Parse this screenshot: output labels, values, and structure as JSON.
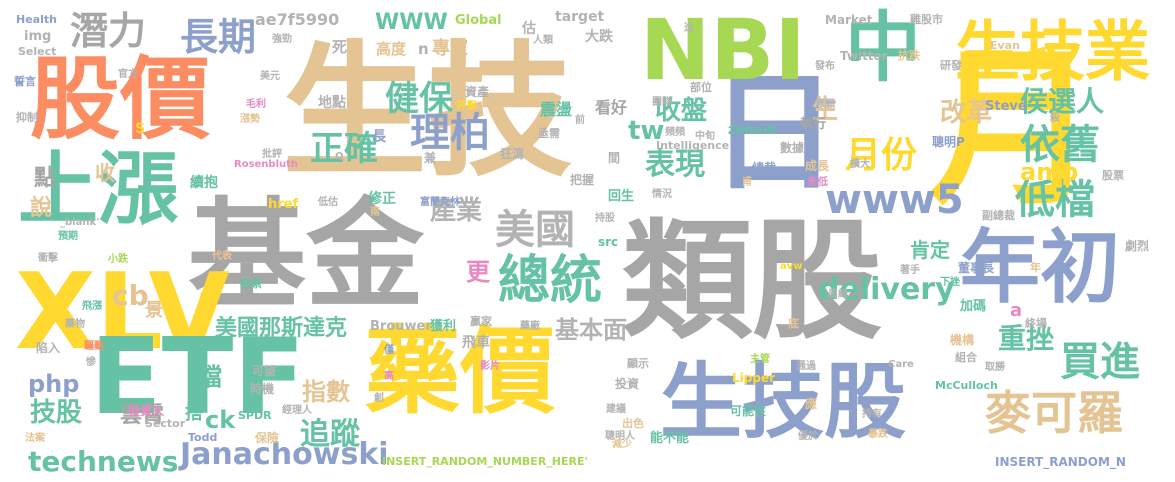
{
  "palette": {
    "gray": "#a6a6a6",
    "teal": "#66c2a5",
    "salmon": "#fc8d62",
    "lavender": "#8da0cb",
    "pink": "#e78ac3",
    "green": "#a6d854",
    "yellow": "#ffd92f",
    "tan": "#e5c494",
    "lightgray": "#b3b3b3"
  },
  "words": [
    {
      "text": "生技",
      "color": "#e5c494"
    },
    {
      "text": "類股",
      "color": "#a6a6a6"
    },
    {
      "text": "基金",
      "color": "#a6a6a6"
    },
    {
      "text": "股價",
      "color": "#fc8d62"
    },
    {
      "text": "月",
      "color": "#ffd92f"
    },
    {
      "text": "日",
      "color": "#8da0cb"
    },
    {
      "text": "NBI",
      "color": "#a6d854"
    },
    {
      "text": "中",
      "color": "#66c2a5"
    },
    {
      "text": "生技業",
      "color": "#ffd92f"
    },
    {
      "text": "上漲",
      "color": "#66c2a5"
    },
    {
      "text": "XLV",
      "color": "#ffd92f"
    },
    {
      "text": "ETF",
      "color": "#66c2a5"
    },
    {
      "text": "藥價",
      "color": "#ffd92f"
    },
    {
      "text": "生技股",
      "color": "#8da0cb"
    },
    {
      "text": "年初",
      "color": "#8da0cb"
    },
    {
      "text": "潛力",
      "color": "#a6a6a6"
    },
    {
      "text": "長期",
      "color": "#8da0cb"
    },
    {
      "text": "總統",
      "color": "#66c2a5"
    },
    {
      "text": "美國",
      "color": "#b3b3b3"
    },
    {
      "text": "依舊",
      "color": "#66c2a5"
    },
    {
      "text": "低檔",
      "color": "#66c2a5"
    },
    {
      "text": "麥可羅",
      "color": "#e5c494"
    },
    {
      "text": "買進",
      "color": "#66c2a5"
    },
    {
      "text": "www5",
      "color": "#8da0cb"
    },
    {
      "text": "月份",
      "color": "#ffd92f"
    },
    {
      "text": "理柏",
      "color": "#8da0cb"
    },
    {
      "text": "正確",
      "color": "#66c2a5"
    },
    {
      "text": "健保",
      "color": "#66c2a5"
    },
    {
      "text": "technews",
      "color": "#66c2a5"
    },
    {
      "text": "Janachowski",
      "color": "#8da0cb"
    },
    {
      "text": "delivery",
      "color": "#66c2a5"
    },
    {
      "text": "ae7f5990",
      "color": "#b3b3b3"
    },
    {
      "text": "WWW",
      "color": "#66c2a5"
    },
    {
      "text": "美國那斯達克",
      "color": "#66c2a5"
    },
    {
      "text": "追蹤",
      "color": "#66c2a5"
    },
    {
      "text": "指數",
      "color": "#e5c494"
    },
    {
      "text": "重挫",
      "color": "#66c2a5"
    },
    {
      "text": "表現",
      "color": "#66c2a5"
    },
    {
      "text": "收盤",
      "color": "#66c2a5"
    },
    {
      "text": "產業",
      "color": "#b3b3b3"
    },
    {
      "text": "基本面",
      "color": "#b3b3b3"
    },
    {
      "text": "侯選人",
      "color": "#66c2a5"
    },
    {
      "text": "改革",
      "color": "#e5c494"
    },
    {
      "text": "amp",
      "color": "#ffd92f"
    },
    {
      "text": "肯定",
      "color": "#66c2a5"
    },
    {
      "text": "技股",
      "color": "#66c2a5"
    },
    {
      "text": "php",
      "color": "#8da0cb"
    },
    {
      "text": "雲霄",
      "color": "#a6a6a6"
    },
    {
      "text": "cb",
      "color": "#e5c494"
    },
    {
      "text": "tw",
      "color": "#66c2a5"
    },
    {
      "text": "生",
      "color": "#e5c494"
    },
    {
      "text": "更",
      "color": "#e78ac3"
    },
    {
      "text": "點",
      "color": "#a6a6a6"
    },
    {
      "text": "說",
      "color": "#e5c494"
    },
    {
      "text": "收",
      "color": "#e5c494"
    },
    {
      "text": "ck",
      "color": "#66c2a5"
    },
    {
      "text": "檔",
      "color": "#66c2a5"
    },
    {
      "text": "a",
      "color": "#e78ac3"
    },
    {
      "text": "景",
      "color": "#e5c494"
    },
    {
      "text": "搭",
      "color": "#66c2a5"
    },
    {
      "text": "專家",
      "color": "#e5c494"
    },
    {
      "text": "高度",
      "color": "#e5c494"
    },
    {
      "text": "n",
      "color": "#b3b3b3"
    },
    {
      "text": "死",
      "color": "#b3b3b3"
    },
    {
      "text": "估",
      "color": "#b3b3b3"
    },
    {
      "text": "看好",
      "color": "#a6a6a6"
    },
    {
      "text": "震盪",
      "color": "#66c2a5"
    },
    {
      "text": "大跌",
      "color": "#b3b3b3"
    },
    {
      "text": "target",
      "color": "#b3b3b3"
    },
    {
      "text": "Global",
      "color": "#a6d854"
    },
    {
      "text": "Market",
      "color": "#b3b3b3"
    },
    {
      "text": "Health",
      "color": "#8da0cb"
    },
    {
      "text": "img",
      "color": "#b3b3b3"
    },
    {
      "text": "Select",
      "color": "#b3b3b3"
    },
    {
      "text": "誓言",
      "color": "#8da0cb"
    },
    {
      "text": "抑制",
      "color": "#b3b3b3"
    },
    {
      "text": "官方",
      "color": "#b3b3b3"
    },
    {
      "text": "強勁",
      "color": "#b3b3b3"
    },
    {
      "text": "美元",
      "color": "#b3b3b3"
    },
    {
      "text": "毛利",
      "color": "#e78ac3"
    },
    {
      "text": "漲勢",
      "color": "#e5c494"
    },
    {
      "text": "地點",
      "color": "#b3b3b3"
    },
    {
      "text": "資產",
      "color": "#b3b3b3"
    },
    {
      "text": "抨擊",
      "color": "#ffd92f"
    },
    {
      "text": "人類",
      "color": "#b3b3b3"
    },
    {
      "text": "穩健",
      "color": "#e5c494"
    },
    {
      "text": "部位",
      "color": "#b3b3b3"
    },
    {
      "text": "團隊",
      "color": "#b3b3b3"
    },
    {
      "text": "發布",
      "color": "#b3b3b3"
    },
    {
      "text": "抗跌",
      "color": "#e5c494"
    },
    {
      "text": "研發",
      "color": "#b3b3b3"
    },
    {
      "text": "雞股市",
      "color": "#b3b3b3"
    },
    {
      "text": "Twitter",
      "color": "#b3b3b3"
    },
    {
      "text": "Evan",
      "color": "#e5c494"
    },
    {
      "text": "Steve",
      "color": "#8da0cb"
    },
    {
      "text": "zoneid",
      "color": "#66c2a5"
    },
    {
      "text": "執行",
      "color": "#a6a6a6"
    },
    {
      "text": "數據",
      "color": "#b3b3b3"
    },
    {
      "text": "總裁",
      "color": "#8da0cb"
    },
    {
      "text": "成長",
      "color": "#e5c494"
    },
    {
      "text": "聰明P",
      "color": "#8da0cb"
    },
    {
      "text": "意願",
      "color": "#b3b3b3"
    },
    {
      "text": "殺",
      "color": "#b3b3b3"
    },
    {
      "text": "股票",
      "color": "#b3b3b3"
    },
    {
      "text": "副總裁",
      "color": "#b3b3b3"
    },
    {
      "text": "劇烈",
      "color": "#b3b3b3"
    },
    {
      "text": "董事長",
      "color": "#8da0cb"
    },
    {
      "text": "年",
      "color": "#e5c494"
    },
    {
      "text": "著手",
      "color": "#b3b3b3"
    },
    {
      "text": "下挫",
      "color": "#66c2a5"
    },
    {
      "text": "加碼",
      "color": "#66c2a5"
    },
    {
      "text": "終場",
      "color": "#b3b3b3"
    },
    {
      "text": "機構",
      "color": "#e5c494"
    },
    {
      "text": "組合",
      "color": "#b3b3b3"
    },
    {
      "text": "取勝",
      "color": "#b3b3b3"
    },
    {
      "text": "Care",
      "color": "#b3b3b3"
    },
    {
      "text": "McCulloch",
      "color": "#66c2a5"
    },
    {
      "text": "持有",
      "color": "#b3b3b3"
    },
    {
      "text": "暴跌",
      "color": "#e5c494"
    },
    {
      "text": "INSERT_RANDOM_N",
      "color": "#8da0cb"
    },
    {
      "text": "INSERT_RANDOM_NUMBER_HERE'",
      "color": "#a6d854"
    },
    {
      "text": "能不能",
      "color": "#66c2a5"
    },
    {
      "text": "聰明人",
      "color": "#b3b3b3"
    },
    {
      "text": "建議",
      "color": "#b3b3b3"
    },
    {
      "text": "出色",
      "color": "#e5c494"
    },
    {
      "text": "投資",
      "color": "#b3b3b3"
    },
    {
      "text": "顯示",
      "color": "#b3b3b3"
    },
    {
      "text": "可能性",
      "color": "#66c2a5"
    },
    {
      "text": "Lipper",
      "color": "#ffd92f"
    },
    {
      "text": "主管",
      "color": "#a6d854"
    },
    {
      "text": "通過",
      "color": "#b3b3b3"
    },
    {
      "text": "優於",
      "color": "#b3b3b3"
    },
    {
      "text": "經理人",
      "color": "#b3b3b3"
    },
    {
      "text": "創",
      "color": "#b3b3b3"
    },
    {
      "text": "SPDR",
      "color": "#66c2a5"
    },
    {
      "text": "投資人",
      "color": "#e78ac3"
    },
    {
      "text": "時機",
      "color": "#b3b3b3"
    },
    {
      "text": "可望",
      "color": "#b3b3b3"
    },
    {
      "text": "Sector",
      "color": "#b3b3b3"
    },
    {
      "text": "Todd",
      "color": "#8da0cb"
    },
    {
      "text": "保險",
      "color": "#e5c494"
    },
    {
      "text": "陷入",
      "color": "#b3b3b3"
    },
    {
      "text": "藥物",
      "color": "#b3b3b3"
    },
    {
      "text": "飛漲",
      "color": "#66c2a5"
    },
    {
      "text": "驅動",
      "color": "#fc8d62"
    },
    {
      "text": "慘",
      "color": "#b3b3b3"
    },
    {
      "text": "法案",
      "color": "#e5c494"
    },
    {
      "text": "Brouwer",
      "color": "#b3b3b3"
    },
    {
      "text": "獲利",
      "color": "#66c2a5"
    },
    {
      "text": "贏家",
      "color": "#b3b3b3"
    },
    {
      "text": "飛車",
      "color": "#b3b3b3"
    },
    {
      "text": "藥廠",
      "color": "#b3b3b3"
    },
    {
      "text": "底",
      "color": "#e5c494"
    },
    {
      "text": "avw",
      "color": "#ffd92f"
    },
    {
      "text": "周線",
      "color": "#b3b3b3"
    },
    {
      "text": "擴大",
      "color": "#b3b3b3"
    },
    {
      "text": "拖累",
      "color": "#66c2a5"
    },
    {
      "text": "代表",
      "color": "#e5c494"
    },
    {
      "text": "_blank'",
      "color": "#b3b3b3"
    },
    {
      "text": "預期",
      "color": "#66c2a5"
    },
    {
      "text": "小跌",
      "color": "#a6d854"
    },
    {
      "text": "衝擊",
      "color": "#b3b3b3"
    },
    {
      "text": "修正",
      "color": "#66c2a5"
    },
    {
      "text": "富蘭克林",
      "color": "#8da0cb"
    },
    {
      "text": "回生",
      "color": "#66c2a5"
    },
    {
      "text": "情況",
      "color": "#b3b3b3"
    },
    {
      "text": "把握",
      "color": "#b3b3b3"
    },
    {
      "text": "持股",
      "color": "#b3b3b3"
    },
    {
      "text": "src",
      "color": "#66c2a5"
    },
    {
      "text": "href",
      "color": "#ffd92f"
    },
    {
      "text": "低估",
      "color": "#b3b3b3"
    },
    {
      "text": "續抱",
      "color": "#66c2a5"
    },
    {
      "text": "Rosenbluth",
      "color": "#e78ac3"
    },
    {
      "text": "批評",
      "color": "#b3b3b3"
    },
    {
      "text": "Q",
      "color": "#b3b3b3"
    },
    {
      "text": "長",
      "color": "#8da0cb"
    },
    {
      "text": "兼",
      "color": "#b3b3b3"
    },
    {
      "text": "狂瀉",
      "color": "#b3b3b3"
    },
    {
      "text": "間",
      "color": "#b3b3b3"
    },
    {
      "text": "亟需",
      "color": "#b3b3b3"
    },
    {
      "text": "前",
      "color": "#b3b3b3"
    },
    {
      "text": "頻頻",
      "color": "#b3b3b3"
    },
    {
      "text": "新低",
      "color": "#e78ac3"
    },
    {
      "text": "Intelligence",
      "color": "#b3b3b3"
    },
    {
      "text": "S",
      "color": "#ffd92f"
    },
    {
      "text": "迄",
      "color": "#b3b3b3"
    },
    {
      "text": "中旬",
      "color": "#b3b3b3"
    },
    {
      "text": "甫",
      "color": "#e5c494"
    },
    {
      "text": "影片",
      "color": "#e78ac3"
    },
    {
      "text": "應",
      "color": "#e5c494"
    },
    {
      "text": "高",
      "color": "#e78ac3"
    },
    {
      "text": "僅",
      "color": "#8da0cb"
    },
    {
      "text": "兩",
      "color": "#e5c494"
    },
    {
      "text": "減少",
      "color": "#e5c494"
    }
  ]
}
